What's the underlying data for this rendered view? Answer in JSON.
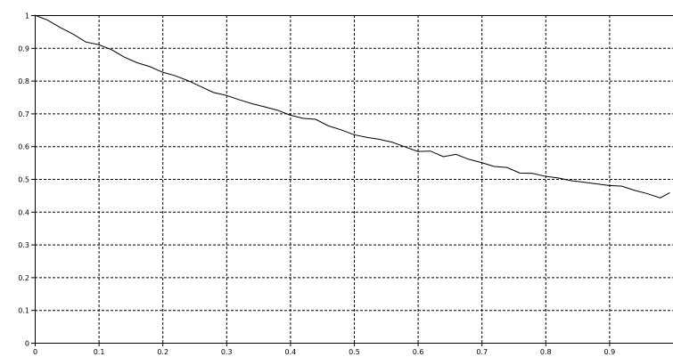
{
  "chart_data": {
    "type": "line",
    "title": "",
    "xlabel": "",
    "ylabel": "",
    "xlim": [
      0,
      1
    ],
    "ylim": [
      0,
      1
    ],
    "grid": true,
    "x_ticks": [
      "0",
      "0.1",
      "0.2",
      "0.3",
      "0.4",
      "0.5",
      "0.6",
      "0.7",
      "0.8",
      "0.9"
    ],
    "y_ticks": [
      "0",
      "0.1",
      "0.2",
      "0.3",
      "0.4",
      "0.5",
      "0.6",
      "0.7",
      "0.8",
      "0.9",
      "1"
    ],
    "series": [
      {
        "color": "#000000",
        "x": [
          0.0,
          0.02,
          0.04,
          0.06,
          0.08,
          0.1,
          0.12,
          0.14,
          0.16,
          0.18,
          0.2,
          0.22,
          0.24,
          0.26,
          0.28,
          0.3,
          0.32,
          0.34,
          0.36,
          0.38,
          0.4,
          0.42,
          0.44,
          0.46,
          0.48,
          0.5,
          0.52,
          0.54,
          0.56,
          0.58,
          0.6,
          0.62,
          0.64,
          0.66,
          0.68,
          0.7,
          0.72,
          0.74,
          0.76,
          0.78,
          0.8,
          0.82,
          0.84,
          0.86,
          0.88,
          0.9,
          0.92,
          0.94,
          0.96,
          0.98,
          0.995
        ],
        "y": [
          1.0,
          0.985,
          0.962,
          0.942,
          0.918,
          0.91,
          0.895,
          0.872,
          0.855,
          0.843,
          0.826,
          0.815,
          0.8,
          0.782,
          0.764,
          0.755,
          0.742,
          0.73,
          0.72,
          0.71,
          0.695,
          0.685,
          0.682,
          0.662,
          0.65,
          0.635,
          0.627,
          0.621,
          0.612,
          0.598,
          0.584,
          0.585,
          0.568,
          0.575,
          0.56,
          0.55,
          0.538,
          0.535,
          0.518,
          0.517,
          0.508,
          0.503,
          0.495,
          0.49,
          0.485,
          0.48,
          0.478,
          0.465,
          0.455,
          0.442,
          0.458
        ]
      }
    ]
  }
}
